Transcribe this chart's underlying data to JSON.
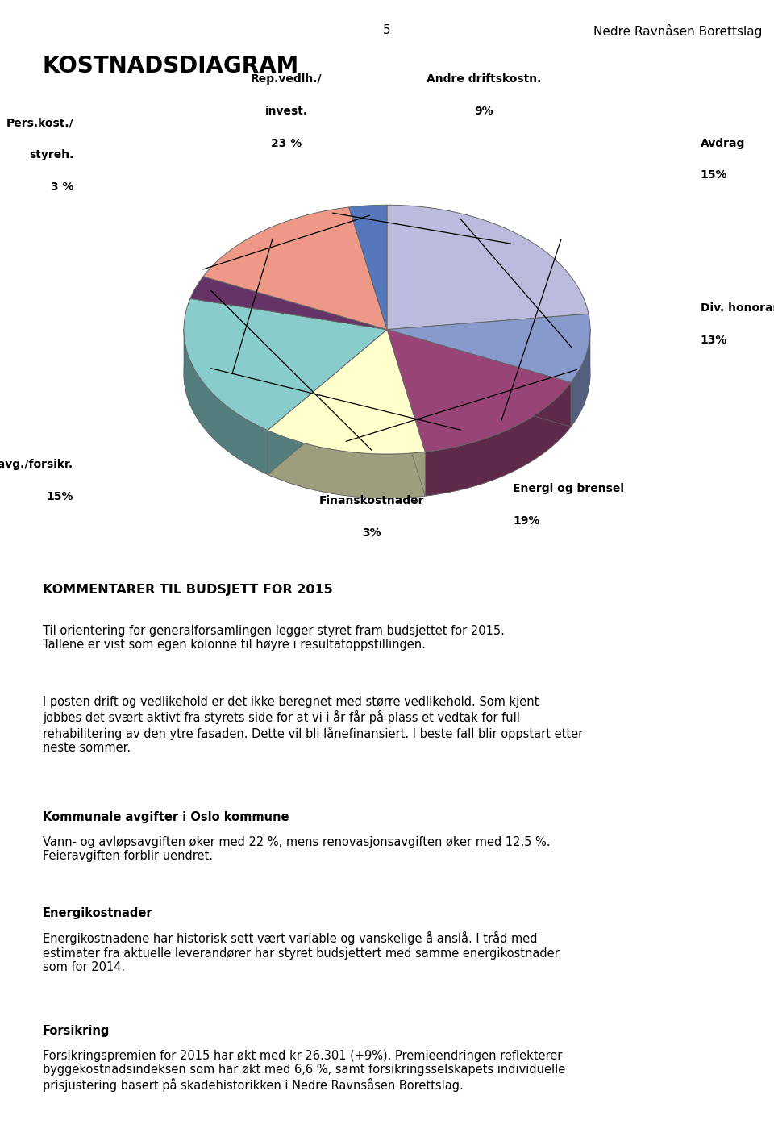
{
  "page_number": "5",
  "header_right": "Nedre Ravnåsen Borettslag",
  "chart_title": "KOSTNADSDIAGRAM",
  "slices": [
    {
      "label": "Rep.vedlh./\ninvest.",
      "pct": "23 %",
      "value": 23,
      "color": "#BBBBDD"
    },
    {
      "label": "Andre driftskostn.",
      "pct": "9%",
      "value": 9,
      "color": "#8899CC"
    },
    {
      "label": "Avdrag",
      "pct": "15%",
      "value": 15,
      "color": "#994477"
    },
    {
      "label": "Div. honorarer",
      "pct": "13%",
      "value": 13,
      "color": "#FFFFCC"
    },
    {
      "label": "Energi og brensel",
      "pct": "19%",
      "value": 19,
      "color": "#88CCCC"
    },
    {
      "label": "Finanskostnader",
      "pct": "3%",
      "value": 3,
      "color": "#663366"
    },
    {
      "label": "Kom.avg./forsikr.",
      "pct": "15%",
      "value": 15,
      "color": "#EE9988"
    },
    {
      "label": "Pers.kost./\nstyreh.",
      "pct": "3 %",
      "value": 3,
      "color": "#5577BB"
    }
  ],
  "body_title": "KOMMENTARER TIL BUDSJETT FOR 2015",
  "body_paragraphs": [
    {
      "bold_prefix": "",
      "text": "Til orientering for generalforsamlingen legger styret fram budsjettet for 2015.\nTallene er vist som egen kolonne til høyre i resultatoppstillingen."
    },
    {
      "bold_prefix": "",
      "text": "I posten drift og vedlikehold er det ikke beregnet med større vedlikehold. Som kjent\njobbes det svært aktivt fra styrets side for at vi i år får på plass et vedtak for full\nrehabilitering av den ytre fasaden. Dette vil bli lånefinansiert. I beste fall blir oppstart etter\nneste sommer."
    },
    {
      "bold_prefix": "Kommunale avgifter i Oslo kommune",
      "text": "Vann- og avløpsavgiften øker med 22 %, mens renovasjonsavgiften øker med 12,5 %.\nFeieravgiften forblir uendret."
    },
    {
      "bold_prefix": "Energikostnader",
      "text": "Energikostnadene har historisk sett vært variable og vanskelige å anslå. I tråd med\nestimater fra aktuelle leverandører har styret budsjettert med samme energikostnader\nsom for 2014."
    },
    {
      "bold_prefix": "Forsikring",
      "text": "Forsikringspremien for 2015 har økt med kr 26.301 (+9%). Premieendringen reflekterer\nbyggekostnadsindeksen som har økt med 6,6 %, samt forsikringsselskapets individuelle\nprisjustering basert på skadehistorikken i Nedre Ravnsåsen Borettslag."
    }
  ],
  "background_color": "#FFFFFF",
  "text_color": "#000000"
}
